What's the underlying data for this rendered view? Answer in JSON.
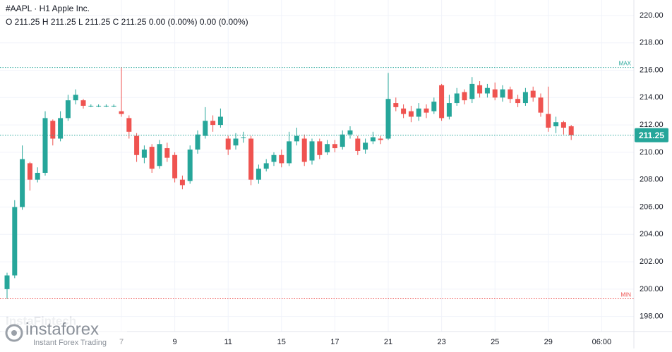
{
  "chart_data": {
    "type": "candlestick",
    "title": "#AAPL · H1 Apple Inc.",
    "subtitle": "O 211.25 H 211.25 L 211.25 C 211.25 0.00 (0.00%) 0.00 (0.00%)",
    "categories": [
      null,
      null,
      null,
      null,
      null,
      null,
      null,
      null,
      null,
      null,
      null,
      null,
      null,
      null,
      null,
      "7",
      null,
      null,
      null,
      null,
      null,
      null,
      "9",
      null,
      null,
      null,
      null,
      null,
      null,
      "11",
      null,
      null,
      null,
      null,
      null,
      null,
      "15",
      null,
      null,
      null,
      null,
      null,
      null,
      "17",
      null,
      null,
      null,
      null,
      null,
      null,
      "21",
      null,
      null,
      null,
      null,
      null,
      null,
      "23",
      null,
      null,
      null,
      null,
      null,
      null,
      "25",
      null,
      null,
      null,
      null,
      null,
      null,
      "29",
      null,
      null,
      null,
      null,
      null,
      null,
      "06:00"
    ],
    "open": [
      200,
      201,
      206,
      209.2,
      208,
      208.5,
      212.3,
      211,
      212.5,
      213.8,
      213.8,
      213.4,
      213.4,
      213.4,
      213.4,
      213,
      212.5,
      211.2,
      209.6,
      210.4,
      209,
      210.3,
      209.8,
      208,
      207.9,
      210.2,
      211.2,
      212.3,
      212,
      211,
      210.5,
      211.1,
      211,
      208,
      208.8,
      209.3,
      209.8,
      209.2,
      210.8,
      211,
      209.4,
      210.8,
      210,
      210.6,
      210.4,
      211.3,
      211,
      210.2,
      210.8,
      211,
      211,
      213.6,
      213.2,
      213,
      212.6,
      213.2,
      213,
      214.9,
      212.6,
      213.6,
      214.4,
      213.9,
      214.9,
      214.3,
      214.6,
      214,
      214.6,
      213.9,
      213.6,
      214.5,
      214,
      212.8,
      211.9,
      212.2,
      211.9,
      null,
      null,
      null,
      null
    ],
    "high": [
      201.2,
      206.5,
      210.5,
      209.3,
      208.9,
      213,
      212.4,
      213,
      214.2,
      214.6,
      213.9,
      213.5,
      213.5,
      213.5,
      213.5,
      216.2,
      212.7,
      211.4,
      210.5,
      210.6,
      210.9,
      210.7,
      210,
      208.3,
      210.5,
      211.6,
      213.3,
      212.7,
      213.2,
      211.2,
      211.4,
      211.5,
      211.2,
      209.1,
      209.5,
      210,
      210.2,
      211.5,
      211.8,
      211.3,
      211,
      211,
      210.9,
      210.9,
      211.6,
      211.9,
      211.2,
      211,
      211.5,
      211.2,
      215.8,
      214,
      213.5,
      213.4,
      213.6,
      213.5,
      214,
      215,
      214.2,
      214.7,
      214.6,
      215.5,
      215.2,
      215,
      215.1,
      214.9,
      214.8,
      214.2,
      214.7,
      214.8,
      214.3,
      214.8,
      212.6,
      212.3,
      212,
      null,
      null,
      null,
      null
    ],
    "low": [
      199.3,
      200.8,
      205.8,
      207.2,
      207.8,
      208.3,
      210.5,
      210.8,
      212.3,
      213.5,
      213.2,
      213.3,
      213.3,
      213.3,
      213.3,
      212.6,
      211,
      209.3,
      209.2,
      208.5,
      208.8,
      209.3,
      207.8,
      207.3,
      207.7,
      209.9,
      211,
      211.5,
      211.8,
      209.8,
      210.2,
      210.7,
      207.6,
      207.7,
      208.6,
      209,
      208.9,
      209,
      210.5,
      209,
      209.1,
      209.5,
      209.8,
      210,
      210.2,
      211,
      209.8,
      209.9,
      210.6,
      210.6,
      210.9,
      213,
      212.5,
      212.2,
      212.3,
      212.5,
      212.8,
      212.3,
      212.4,
      213.4,
      213.5,
      213.6,
      214,
      214,
      213.8,
      213.7,
      213.6,
      213.3,
      213.4,
      213.7,
      212.6,
      211.5,
      211.4,
      211.3,
      210.9,
      null,
      null,
      null,
      null
    ],
    "close": [
      201,
      206,
      209.5,
      208,
      208.5,
      212.5,
      211,
      212.5,
      213.8,
      214.2,
      213.4,
      213.4,
      213.4,
      213.4,
      213.4,
      212.8,
      211.5,
      209.8,
      210.2,
      208.8,
      210.6,
      209.6,
      208.1,
      207.6,
      210.2,
      211.3,
      212.3,
      212,
      212.6,
      210.2,
      211,
      211.1,
      208,
      208.8,
      209.2,
      209.8,
      209.2,
      210.8,
      211.2,
      209.3,
      210.8,
      209.8,
      210.6,
      210.3,
      211.3,
      211.6,
      210.1,
      210.7,
      211.1,
      210.9,
      213.9,
      213.3,
      212.8,
      212.6,
      213.2,
      212.9,
      213.7,
      212.5,
      213.6,
      214.3,
      213.8,
      215,
      214.3,
      214.7,
      214,
      214.6,
      213.9,
      213.6,
      214.4,
      214,
      212.9,
      211.8,
      212.2,
      211.8,
      211.25,
      null,
      null,
      null,
      null
    ],
    "up_color": "#26a69a",
    "down_color": "#ef5350",
    "ylim": [
      196.9,
      221.13
    ],
    "yticks": [
      {
        "value": 198,
        "label": "198.00"
      },
      {
        "value": 200,
        "label": "200.00"
      },
      {
        "value": 202,
        "label": "202.00"
      },
      {
        "value": 204,
        "label": "204.00"
      },
      {
        "value": 206,
        "label": "206.00"
      },
      {
        "value": 208,
        "label": "208.00"
      },
      {
        "value": 210,
        "label": "210.00"
      },
      {
        "value": 212,
        "label": "212.00"
      },
      {
        "value": 214,
        "label": "214.00"
      },
      {
        "value": 216,
        "label": "216.00"
      },
      {
        "value": 218,
        "label": "218.00"
      },
      {
        "value": 220,
        "label": "220.00"
      }
    ],
    "grid": true,
    "max_line": {
      "value": 216.2,
      "label": "MAX",
      "color": "#26a69a"
    },
    "min_line": {
      "value": 199.3,
      "label": "MIN",
      "color": "#ef5350"
    },
    "last_price": {
      "value": 211.25,
      "label": "211.25",
      "color": "#26a69a"
    },
    "watermark": {
      "brand": "instaforex",
      "tagline": "Instant Forex Trading",
      "faded": "InstaFintech"
    }
  }
}
